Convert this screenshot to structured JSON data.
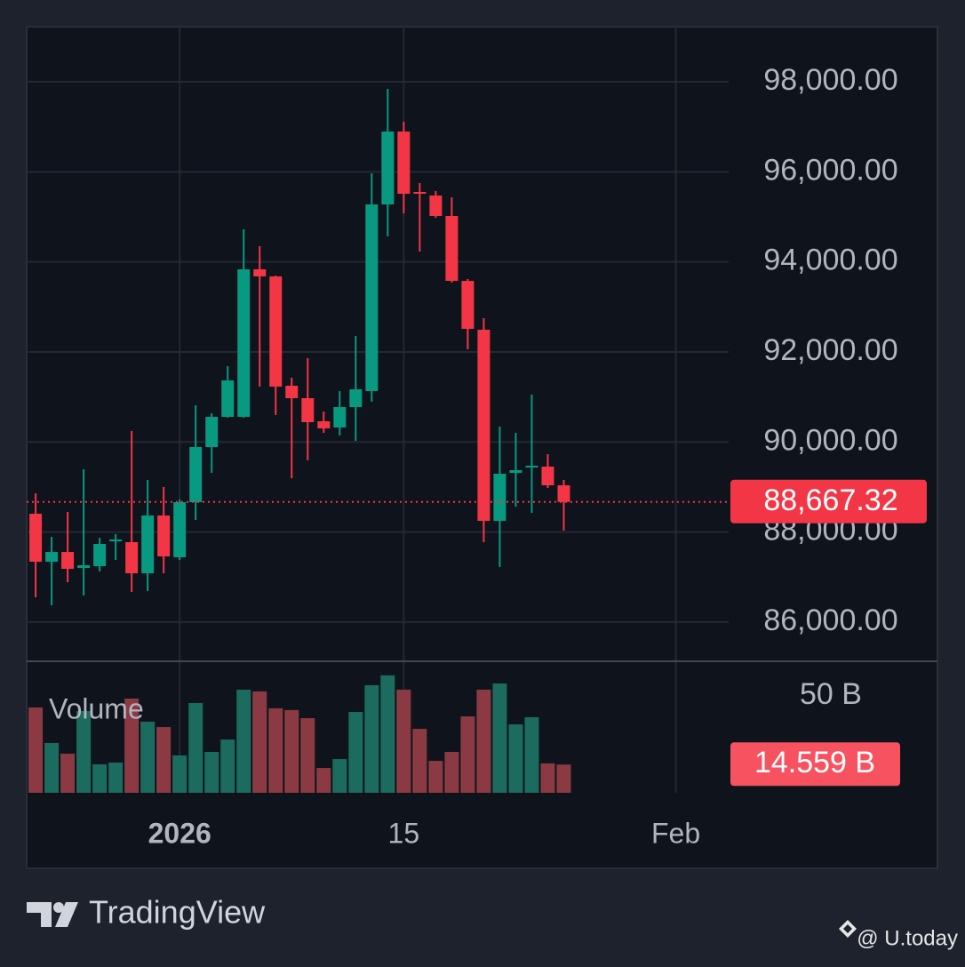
{
  "chart_data": [
    {
      "type": "candlestick",
      "x": [
        0,
        1,
        2,
        3,
        4,
        5,
        6,
        7,
        8,
        9,
        10,
        11,
        12,
        13,
        14,
        15,
        16,
        17,
        18,
        19,
        20,
        21,
        22,
        23,
        24,
        25,
        26,
        27,
        28,
        29,
        30,
        31,
        32,
        33
      ],
      "open": [
        88406,
        87340,
        87557,
        87203,
        87242,
        87794,
        87775,
        87084,
        88367,
        87440,
        88663,
        89887,
        90558,
        90558,
        93835,
        93677,
        91249,
        90973,
        90460,
        90322,
        90775,
        91131,
        95276,
        96895,
        95553,
        95474,
        95020,
        93578,
        92493,
        88248,
        89314,
        89453,
        89453,
        89038
      ],
      "high": [
        88860,
        87893,
        88446,
        89393,
        87873,
        87952,
        90242,
        89157,
        88999,
        88722,
        90815,
        90637,
        91683,
        94723,
        94348,
        93697,
        91427,
        91861,
        90677,
        91131,
        92354,
        95967,
        97842,
        97112,
        95750,
        95572,
        95434,
        93618,
        92749,
        90341,
        90203,
        91052,
        89729,
        89157
      ],
      "low": [
        86551,
        86373,
        86886,
        86590,
        87124,
        87380,
        86669,
        86689,
        87084,
        87380,
        88268,
        89314,
        90538,
        90538,
        91229,
        90598,
        89196,
        89591,
        90203,
        90144,
        90025,
        90894,
        94565,
        95079,
        94230,
        94980,
        93539,
        92058,
        87775,
        87222,
        88564,
        88426,
        88979,
        88032
      ],
      "close": [
        87340,
        87557,
        87183,
        87262,
        87735,
        87834,
        87084,
        88367,
        87459,
        88663,
        89887,
        90558,
        91367,
        93835,
        93677,
        91229,
        90973,
        90440,
        90302,
        90775,
        91170,
        95276,
        96895,
        95513,
        95513,
        95020,
        93578,
        92512,
        88248,
        89295,
        89374,
        89472,
        89038,
        88667.32
      ],
      "up_color": "#089981",
      "down_color": "#f23645",
      "xlim": [
        -0.56,
        43.3
      ],
      "xticks": [
        {
          "value": 9,
          "label": "2026"
        },
        {
          "value": 23,
          "label": "15"
        },
        {
          "value": 40,
          "label": "Feb"
        }
      ],
      "ylim": [
        85130,
        99224
      ],
      "yticks": [
        {
          "value": 86000,
          "label": "86,000.00"
        },
        {
          "value": 88000,
          "label": "88,000.00"
        },
        {
          "value": 90000,
          "label": "90,000.00"
        },
        {
          "value": 92000,
          "label": "92,000.00"
        },
        {
          "value": 94000,
          "label": "94,000.00"
        },
        {
          "value": 96000,
          "label": "96,000.00"
        },
        {
          "value": 98000,
          "label": "98,000.00"
        }
      ],
      "grid": true,
      "last_price": {
        "value": 88667.32,
        "label": "88,667.32"
      }
    },
    {
      "type": "bar",
      "label": "Volume",
      "values": [
        44.0,
        25.7,
        20.2,
        42.2,
        14.7,
        15.6,
        48.6,
        36.7,
        33.9,
        19.3,
        46.3,
        21.1,
        27.5,
        53.2,
        52.3,
        43.6,
        42.7,
        38.5,
        12.8,
        17.4,
        41.7,
        55.5,
        60.6,
        53.2,
        33.0,
        16.5,
        21.1,
        39.4,
        53.2,
        56.4,
        35.3,
        39.0,
        15.2,
        14.559
      ],
      "up_color": "#1c6b5f",
      "down_color": "#8b3a44",
      "ylim": [
        0,
        67.4
      ],
      "yticks": [
        {
          "value": 50,
          "label": "50 B"
        }
      ],
      "last_value": {
        "value": 14.559,
        "label": "14.559 B"
      }
    }
  ],
  "brand": "TradingView",
  "watermark": "@ U.today"
}
